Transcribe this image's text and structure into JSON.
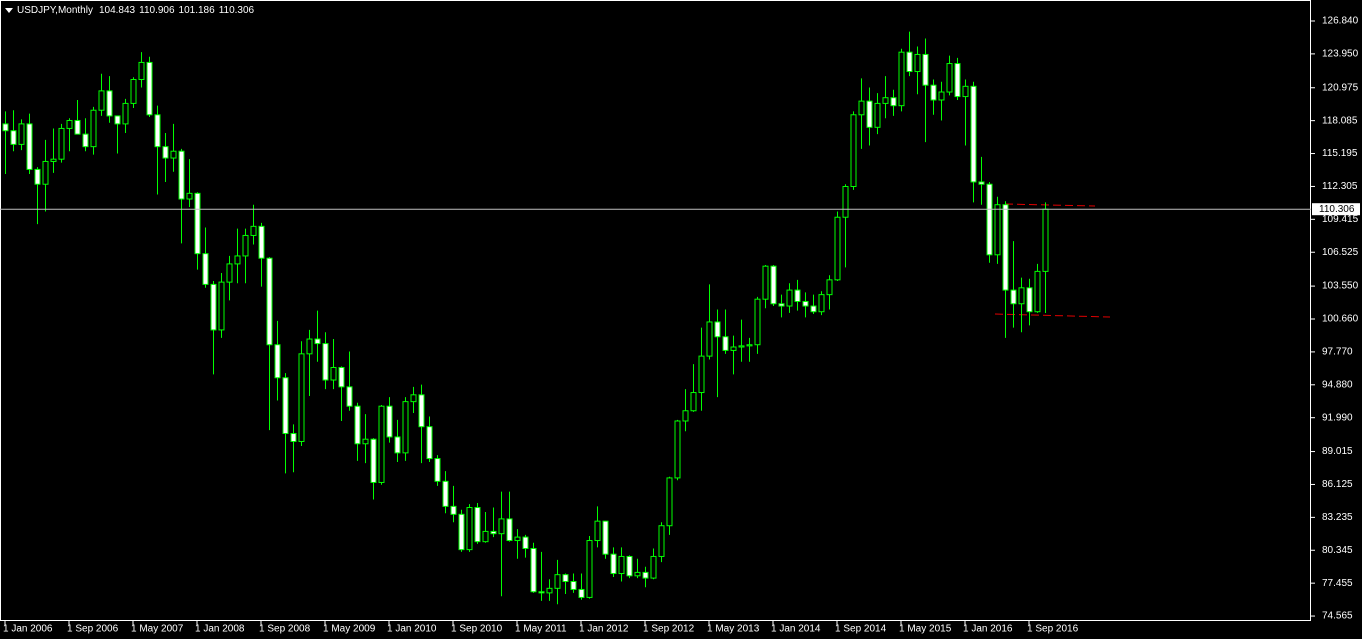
{
  "chart_data": {
    "type": "candlestick",
    "title": "USDJPY,Monthly",
    "categories": [
      "1 Jan 2006",
      null,
      null,
      null,
      null,
      null,
      null,
      null,
      "1 Sep 2006",
      null,
      null,
      null,
      null,
      null,
      null,
      null,
      "1 May 2007",
      null,
      null,
      null,
      null,
      null,
      null,
      null,
      "1 Jan 2008",
      null,
      null,
      null,
      null,
      null,
      null,
      null,
      "1 Sep 2008",
      null,
      null,
      null,
      null,
      null,
      null,
      null,
      "1 May 2009",
      null,
      null,
      null,
      null,
      null,
      null,
      null,
      "1 Jan 2010",
      null,
      null,
      null,
      null,
      null,
      null,
      null,
      "1 Sep 2010",
      null,
      null,
      null,
      null,
      null,
      null,
      null,
      "1 May 2011",
      null,
      null,
      null,
      null,
      null,
      null,
      null,
      "1 Jan 2012",
      null,
      null,
      null,
      null,
      null,
      null,
      null,
      "1 Sep 2012",
      null,
      null,
      null,
      null,
      null,
      null,
      null,
      "1 May 2013",
      null,
      null,
      null,
      null,
      null,
      null,
      null,
      "1 Jan 2014",
      null,
      null,
      null,
      null,
      null,
      null,
      null,
      "1 Sep 2014",
      null,
      null,
      null,
      null,
      null,
      null,
      null,
      "1 May 2015",
      null,
      null,
      null,
      null,
      null,
      null,
      null,
      "1 Jan 2016",
      null,
      null,
      null,
      null,
      null,
      null,
      null,
      "1 Sep 2016",
      null,
      null
    ],
    "open": [
      117.8,
      117.2,
      116.0,
      117.8,
      113.8,
      112.5,
      114.5,
      114.7,
      117.4,
      118.1,
      116.9,
      115.8,
      119.0,
      120.7,
      118.5,
      117.8,
      119.6,
      121.7,
      123.2,
      118.6,
      115.8,
      114.8,
      115.4,
      111.2,
      111.7,
      106.4,
      103.7,
      99.7,
      103.9,
      105.5,
      106.2,
      108.0,
      108.8,
      106.0,
      98.4,
      95.5,
      90.6,
      89.9,
      97.6,
      98.9,
      98.5,
      95.3,
      96.4,
      94.7,
      93.0,
      89.7,
      90.1,
      86.3,
      93.0,
      90.3,
      88.9,
      93.4,
      94.0,
      91.2,
      88.4,
      86.4,
      84.2,
      83.5,
      80.4,
      84.1,
      81.1,
      82.0,
      81.8,
      83.1,
      81.2,
      81.5,
      80.5,
      76.7,
      76.6,
      77.0,
      78.2,
      77.6,
      76.9,
      76.2,
      81.2,
      82.9,
      80.0,
      78.3,
      79.8,
      78.1,
      78.4,
      77.9,
      79.8,
      82.5,
      86.7,
      91.7,
      92.6,
      94.2,
      97.4,
      100.4,
      99.1,
      97.9,
      98.2,
      98.3,
      98.4,
      102.4,
      105.3,
      102.0,
      101.8,
      103.2,
      102.2,
      101.8,
      101.3,
      102.8,
      104.1,
      109.6,
      112.3,
      118.6,
      119.8,
      117.5,
      119.6,
      120.1,
      119.4,
      124.1,
      122.4,
      123.9,
      121.2,
      119.9,
      120.6,
      123.1,
      120.2,
      121.1,
      112.7,
      112.5,
      106.3,
      110.7,
      103.2,
      102.0,
      103.4,
      101.3,
      104.843
    ],
    "high": [
      118.9,
      119.0,
      118.2,
      118.7,
      114.0,
      116.4,
      117.4,
      117.8,
      118.3,
      119.9,
      118.3,
      119.3,
      122.2,
      122.0,
      118.5,
      120.0,
      121.9,
      124.1,
      123.7,
      119.4,
      117.0,
      117.8,
      115.6,
      114.7,
      111.8,
      108.7,
      104.0,
      104.7,
      106.2,
      108.6,
      108.6,
      110.7,
      109.1,
      106.1,
      100.5,
      95.9,
      91.4,
      98.7,
      99.7,
      101.4,
      99.5,
      98.9,
      96.5,
      97.8,
      93.3,
      92.3,
      90.2,
      93.1,
      93.8,
      91.8,
      93.8,
      94.7,
      94.9,
      92.1,
      88.7,
      87.3,
      86.0,
      83.9,
      84.4,
      84.5,
      83.7,
      84.1,
      85.5,
      85.5,
      82.2,
      81.7,
      81.0,
      80.2,
      77.8,
      79.5,
      78.3,
      78.3,
      78.3,
      81.6,
      84.2,
      82.9,
      80.6,
      80.6,
      79.9,
      79.6,
      78.9,
      80.5,
      82.8,
      86.8,
      91.8,
      94.5,
      96.7,
      99.9,
      103.7,
      101.5,
      101.5,
      99.2,
      100.6,
      99.0,
      102.6,
      105.4,
      105.4,
      102.8,
      103.8,
      104.1,
      103.0,
      102.8,
      103.1,
      104.5,
      110.1,
      112.5,
      118.9,
      121.8,
      121.0,
      120.5,
      122.0,
      120.8,
      124.4,
      125.9,
      124.6,
      125.3,
      121.7,
      121.5,
      123.8,
      123.6,
      121.7,
      121.5,
      114.9,
      112.7,
      111.4,
      111.0,
      107.5,
      104.3,
      104.2,
      105.5,
      110.906
    ],
    "low": [
      113.4,
      115.4,
      115.5,
      113.4,
      109.0,
      110.1,
      113.5,
      114.4,
      115.4,
      116.9,
      115.4,
      115.1,
      118.5,
      117.9,
      115.2,
      117.0,
      119.2,
      121.0,
      118.4,
      111.6,
      112.7,
      113.6,
      107.3,
      110.5,
      105.0,
      103.4,
      95.8,
      99.0,
      102.3,
      103.8,
      103.8,
      107.2,
      103.5,
      90.9,
      93.5,
      87.1,
      87.2,
      89.5,
      93.9,
      96.9,
      94.5,
      94.5,
      91.7,
      92.6,
      88.2,
      88.0,
      84.8,
      86.1,
      89.8,
      88.1,
      88.2,
      92.4,
      88.0,
      88.1,
      86.0,
      83.6,
      82.8,
      80.2,
      80.2,
      80.9,
      81.0,
      81.5,
      76.3,
      81.1,
      79.6,
      79.7,
      76.6,
      75.9,
      75.9,
      75.6,
      76.5,
      76.6,
      76.0,
      76.1,
      80.6,
      79.6,
      78.0,
      77.6,
      77.9,
      77.9,
      77.1,
      77.8,
      79.3,
      81.7,
      86.5,
      90.8,
      92.5,
      92.6,
      97.1,
      93.8,
      97.6,
      95.8,
      96.9,
      96.9,
      97.6,
      101.6,
      101.8,
      100.8,
      101.2,
      101.4,
      100.8,
      101.1,
      101.0,
      101.5,
      104.0,
      105.2,
      112.0,
      115.6,
      115.9,
      116.9,
      118.3,
      118.5,
      118.9,
      122.0,
      120.4,
      116.2,
      118.6,
      118.1,
      120.3,
      119.9,
      115.9,
      110.9,
      110.7,
      105.6,
      105.5,
      99.0,
      99.9,
      99.5,
      100.1,
      101.2,
      101.186
    ],
    "close": [
      117.2,
      116.0,
      117.8,
      113.8,
      112.5,
      114.5,
      114.7,
      117.4,
      118.1,
      116.9,
      115.8,
      119.0,
      120.7,
      118.5,
      117.8,
      119.6,
      121.7,
      123.2,
      118.6,
      115.8,
      114.8,
      115.4,
      111.2,
      111.7,
      106.4,
      103.7,
      99.7,
      103.9,
      105.5,
      106.2,
      108.0,
      108.8,
      106.0,
      98.4,
      95.5,
      90.6,
      89.9,
      97.6,
      98.9,
      98.5,
      95.3,
      96.4,
      94.7,
      93.0,
      89.7,
      90.1,
      86.3,
      93.0,
      90.3,
      88.9,
      93.4,
      94.0,
      91.2,
      88.4,
      86.4,
      84.2,
      83.5,
      80.4,
      84.1,
      81.1,
      82.0,
      81.8,
      83.1,
      81.2,
      81.5,
      80.5,
      76.7,
      76.6,
      77.0,
      78.2,
      77.6,
      76.9,
      76.2,
      81.2,
      82.9,
      80.0,
      78.3,
      79.8,
      78.1,
      78.4,
      77.9,
      79.8,
      82.5,
      86.7,
      91.7,
      92.6,
      94.2,
      97.4,
      100.4,
      99.1,
      97.9,
      98.2,
      98.3,
      98.4,
      102.4,
      105.3,
      102.0,
      101.8,
      103.2,
      102.2,
      101.8,
      101.3,
      102.8,
      104.1,
      109.6,
      112.3,
      118.6,
      119.8,
      117.5,
      119.6,
      120.1,
      119.4,
      124.1,
      122.4,
      123.9,
      121.2,
      119.9,
      120.6,
      123.1,
      120.2,
      121.1,
      112.7,
      112.5,
      106.3,
      110.7,
      103.2,
      102.0,
      103.4,
      101.3,
      104.843,
      110.306
    ],
    "ylim": [
      74.13,
      128.42
    ],
    "yticks": [
      {
        "value": 126.84,
        "label": "126.840"
      },
      {
        "value": 123.95,
        "label": "123.950"
      },
      120.975,
      118.085,
      115.195,
      112.305,
      109.415,
      106.525,
      {
        "value": 103.55,
        "label": "103.550"
      },
      {
        "value": 100.66,
        "label": "100.660"
      },
      {
        "value": 97.77,
        "label": "97.770"
      },
      {
        "value": 94.88,
        "label": "94.880"
      },
      {
        "value": 91.99,
        "label": "91.990"
      },
      89.015,
      86.125,
      83.235,
      80.345,
      77.455,
      74.565
    ],
    "colors": {
      "wick": "#00ff00",
      "up_body": "#000000",
      "down_body": "#ffffff"
    },
    "grid": false
  }
}
